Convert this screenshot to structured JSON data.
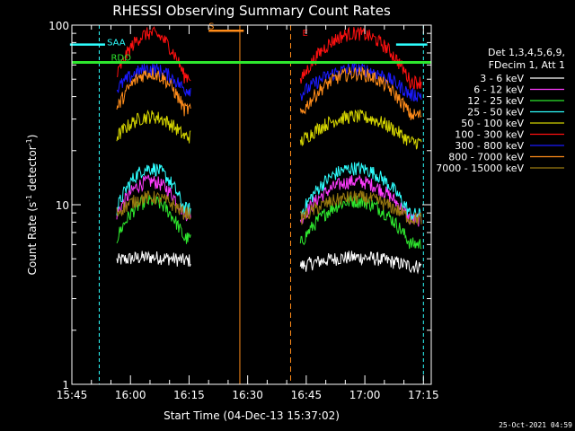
{
  "chart_data": {
    "type": "line",
    "title": "RHESSI Observing Summary Count Rates",
    "xlabel": "Start Time (04-Dec-13 15:37:02)",
    "ylabel_main": "Count Rate (s",
    "ylabel_sup1": "-1",
    "ylabel_mid": " detector",
    "ylabel_sup2": "-1",
    "ylabel_end": ")",
    "x_range_min": [
      945,
      1037
    ],
    "y_scale": "log",
    "ylim": [
      1,
      100
    ],
    "x_ticks": [
      {
        "min": 945,
        "label": "15:45"
      },
      {
        "min": 960,
        "label": "16:00"
      },
      {
        "min": 975,
        "label": "16:15"
      },
      {
        "min": 990,
        "label": "16:30"
      },
      {
        "min": 1005,
        "label": "16:45"
      },
      {
        "min": 1020,
        "label": "17:00"
      },
      {
        "min": 1035,
        "label": "17:15"
      }
    ],
    "y_ticks": [
      {
        "value": 1,
        "label": "1"
      },
      {
        "value": 10,
        "label": "10"
      },
      {
        "value": 100,
        "label": "100"
      }
    ],
    "legend": {
      "header1": "Det 1,3,4,5,6,9,",
      "header2": "FDecim 1, Att 1",
      "placement": "right"
    },
    "series": [
      {
        "name": "3 - 6 keV",
        "color": "#ffffff"
      },
      {
        "name": "6 - 12 keV",
        "color": "#ff3cff"
      },
      {
        "name": "12 - 25 keV",
        "color": "#2ee82e"
      },
      {
        "name": "25 - 50 keV",
        "color": "#2effff"
      },
      {
        "name": "50 - 100 keV",
        "color": "#d4d400"
      },
      {
        "name": "100 - 300 keV",
        "color": "#ff1010"
      },
      {
        "name": "300 - 800 keV",
        "color": "#1a1aff"
      },
      {
        "name": "800 - 7000 keV",
        "color": "#ff8c1a"
      },
      {
        "name": "7000 - 15000 keV",
        "color": "#9a7a10"
      }
    ],
    "levels": {
      "day": [
        {
          "name": "3 - 6 keV",
          "base": 4.9,
          "peak": 5.1
        },
        {
          "name": "6 - 12 keV",
          "base": 8.9,
          "peak": 13.5
        },
        {
          "name": "12 - 25 keV",
          "base": 6.5,
          "peak": 10.5
        },
        {
          "name": "25 - 50 keV",
          "base": 9.5,
          "peak": 16
        },
        {
          "name": "50 - 100 keV",
          "base": 24,
          "peak": 31
        },
        {
          "name": "100 - 300 keV",
          "base": 52,
          "peak": 90
        },
        {
          "name": "300 - 800 keV",
          "base": 44,
          "peak": 57
        },
        {
          "name": "800 - 7000 keV",
          "base": 34,
          "peak": 54
        },
        {
          "name": "7000 - 15000 keV",
          "base": 9,
          "peak": 11
        }
      ]
    },
    "annotations": [
      {
        "label": "RDO",
        "color": "#2ee82e"
      },
      {
        "label": "S",
        "color": "#ff8c1a"
      },
      {
        "label": "E",
        "color": "#ff1010"
      },
      {
        "label": "SAA",
        "color": "#2effff"
      }
    ]
  },
  "footer": {
    "timestamp": "25-Oct-2021 04:59"
  }
}
